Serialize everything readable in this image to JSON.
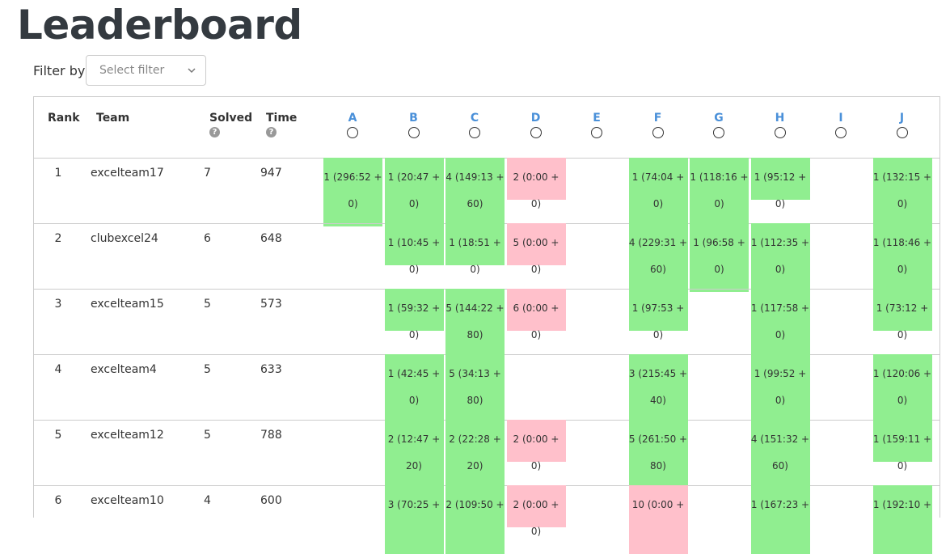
{
  "page": {
    "title": "Leaderboard"
  },
  "filter": {
    "label": "Filter by",
    "placeholder": "Select filter"
  },
  "columns": {
    "rank": "Rank",
    "team": "Team",
    "solved": "Solved",
    "time": "Time",
    "help": "?"
  },
  "problems": [
    "A",
    "B",
    "C",
    "D",
    "E",
    "F",
    "G",
    "H",
    "I",
    "J"
  ],
  "rows": [
    {
      "rank": "1",
      "team": "excelteam17",
      "solved": "7",
      "time": "947",
      "cells": [
        {
          "col": 0,
          "status": "solved",
          "lines": [
            "1 (296:52 +",
            "0)"
          ]
        },
        {
          "col": 1,
          "status": "solved",
          "lines": [
            "1 (20:47 +",
            "0)"
          ]
        },
        {
          "col": 2,
          "status": "solved",
          "lines": [
            "4 (149:13 +",
            "60)"
          ]
        },
        {
          "col": 3,
          "status": "failed",
          "lines": [
            "2 (0:00 + 0)"
          ]
        },
        {
          "col": 5,
          "status": "solved",
          "lines": [
            "1 (74:04 +",
            "0)"
          ]
        },
        {
          "col": 6,
          "status": "solved",
          "lines": [
            "1 (118:16 +",
            "0)"
          ]
        },
        {
          "col": 7,
          "status": "solved",
          "lines": [
            "1 (95:12 + 0)"
          ]
        },
        {
          "col": 9,
          "status": "solved",
          "lines": [
            "1 (132:15 +",
            "0)"
          ]
        }
      ]
    },
    {
      "rank": "2",
      "team": "clubexcel24",
      "solved": "6",
      "time": "648",
      "cells": [
        {
          "col": 1,
          "status": "solved",
          "lines": [
            "1 (10:45 + 0)"
          ]
        },
        {
          "col": 2,
          "status": "solved",
          "lines": [
            "1 (18:51 + 0)"
          ]
        },
        {
          "col": 3,
          "status": "failed",
          "lines": [
            "5 (0:00 + 0)"
          ]
        },
        {
          "col": 5,
          "status": "solved",
          "lines": [
            "4 (229:31 +",
            "60)"
          ]
        },
        {
          "col": 6,
          "status": "solved",
          "lines": [
            "1 (96:58 +",
            "0)"
          ]
        },
        {
          "col": 7,
          "status": "solved",
          "lines": [
            "1 (112:35 +",
            "0)"
          ]
        },
        {
          "col": 9,
          "status": "solved",
          "lines": [
            "1 (118:46 +",
            "0)"
          ]
        }
      ]
    },
    {
      "rank": "3",
      "team": "excelteam15",
      "solved": "5",
      "time": "573",
      "cells": [
        {
          "col": 1,
          "status": "solved",
          "lines": [
            "1 (59:32 + 0)"
          ]
        },
        {
          "col": 2,
          "status": "solved",
          "lines": [
            "5 (144:22 +",
            "80)"
          ]
        },
        {
          "col": 3,
          "status": "failed",
          "lines": [
            "6 (0:00 + 0)"
          ]
        },
        {
          "col": 5,
          "status": "solved",
          "lines": [
            "1 (97:53 + 0)"
          ]
        },
        {
          "col": 7,
          "status": "solved",
          "lines": [
            "1 (117:58 +",
            "0)"
          ]
        },
        {
          "col": 9,
          "status": "solved",
          "lines": [
            "1 (73:12 + 0)"
          ]
        }
      ]
    },
    {
      "rank": "4",
      "team": "excelteam4",
      "solved": "5",
      "time": "633",
      "cells": [
        {
          "col": 1,
          "status": "solved",
          "lines": [
            "1 (42:45 +",
            "0)"
          ]
        },
        {
          "col": 2,
          "status": "solved",
          "lines": [
            "5 (34:13 +",
            "80)"
          ]
        },
        {
          "col": 5,
          "status": "solved",
          "lines": [
            "3 (215:45 +",
            "40)"
          ]
        },
        {
          "col": 7,
          "status": "solved",
          "lines": [
            "1 (99:52 +",
            "0)"
          ]
        },
        {
          "col": 9,
          "status": "solved",
          "lines": [
            "1 (120:06 +",
            "0)"
          ]
        }
      ]
    },
    {
      "rank": "5",
      "team": "excelteam12",
      "solved": "5",
      "time": "788",
      "cells": [
        {
          "col": 1,
          "status": "solved",
          "lines": [
            "2 (12:47 +",
            "20)"
          ]
        },
        {
          "col": 2,
          "status": "solved",
          "lines": [
            "2 (22:28 +",
            "20)"
          ]
        },
        {
          "col": 3,
          "status": "failed",
          "lines": [
            "2 (0:00 + 0)"
          ]
        },
        {
          "col": 5,
          "status": "solved",
          "lines": [
            "5 (261:50 +",
            "80)"
          ]
        },
        {
          "col": 7,
          "status": "solved",
          "lines": [
            "4 (151:32 +",
            "60)"
          ]
        },
        {
          "col": 9,
          "status": "solved",
          "lines": [
            "1 (159:11 + 0)"
          ]
        }
      ]
    },
    {
      "rank": "6",
      "team": "excelteam10",
      "solved": "4",
      "time": "600",
      "cells": [
        {
          "col": 1,
          "status": "solved",
          "lines": [
            "3 (70:25 +",
            ""
          ]
        },
        {
          "col": 2,
          "status": "solved",
          "lines": [
            "2 (109:50 +",
            ""
          ]
        },
        {
          "col": 3,
          "status": "failed",
          "lines": [
            "2 (0:00 + 0)"
          ]
        },
        {
          "col": 5,
          "status": "failed",
          "lines": [
            "10 (0:00 +",
            ""
          ]
        },
        {
          "col": 7,
          "status": "solved",
          "lines": [
            "1 (167:23 +",
            ""
          ]
        },
        {
          "col": 9,
          "status": "solved",
          "lines": [
            "1 (192:10 +",
            ""
          ]
        }
      ]
    }
  ],
  "colors": {
    "solved": "#90ee90",
    "failed": "#ffc0cb",
    "problem_link": "#4a90d9",
    "title": "#343a40"
  }
}
